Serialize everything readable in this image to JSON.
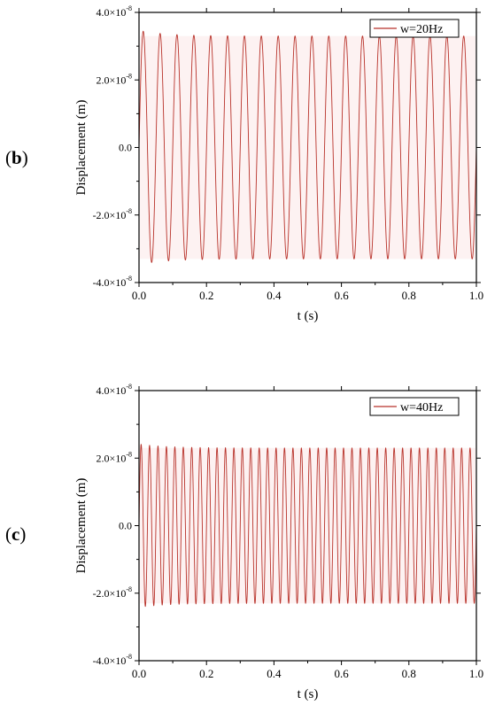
{
  "panels": [
    {
      "label": "(",
      "letter": "b",
      "close": ")"
    },
    {
      "label": "(",
      "letter": "c",
      "close": ")"
    }
  ],
  "colors": {
    "signal": "#b8322a",
    "signal_light": "#d9534f",
    "axis": "#000000",
    "envelope_tint": "#f8dada"
  },
  "chart_data": [
    {
      "type": "line",
      "xlabel": "t (s)",
      "ylabel": "Displacement (m)",
      "xlim": [
        0.0,
        1.0
      ],
      "ylim": [
        -4e-08,
        4e-08
      ],
      "x_ticks": [
        0.0,
        0.2,
        0.4,
        0.6,
        0.8,
        1.0
      ],
      "x_tick_labels": [
        "0.0",
        "0.2",
        "0.4",
        "0.6",
        "0.8",
        "1.0"
      ],
      "y_ticks": [
        4e-08,
        2e-08,
        0.0,
        -2e-08,
        -4e-08
      ],
      "y_tick_labels": [
        {
          "base": "4.0×10",
          "exp": "-8"
        },
        {
          "base": "2.0×10",
          "exp": "-8"
        },
        {
          "base": "0.0",
          "exp": ""
        },
        {
          "base": "-2.0×10",
          "exp": "-8"
        },
        {
          "base": "-4.0×10",
          "exp": "-8"
        }
      ],
      "grid": false,
      "legend_position": "top-right",
      "series": [
        {
          "name": "w=20Hz",
          "frequency_hz": 20,
          "amplitude": 3.3e-08,
          "first_peak": 3.45e-08,
          "first_trough": -3.35e-08
        }
      ]
    },
    {
      "type": "line",
      "xlabel": "t (s)",
      "ylabel": "Displacement (m)",
      "xlim": [
        0.0,
        1.0
      ],
      "ylim": [
        -4e-08,
        4e-08
      ],
      "x_ticks": [
        0.0,
        0.2,
        0.4,
        0.6,
        0.8,
        1.0
      ],
      "x_tick_labels": [
        "0.0",
        "0.2",
        "0.4",
        "0.6",
        "0.8",
        "1.0"
      ],
      "y_ticks": [
        4e-08,
        2e-08,
        0.0,
        -2e-08,
        -4e-08
      ],
      "y_tick_labels": [
        {
          "base": "4.0×10",
          "exp": "-8"
        },
        {
          "base": "2.0×10",
          "exp": "-8"
        },
        {
          "base": "0.0",
          "exp": ""
        },
        {
          "base": "-2.0×10",
          "exp": "-8"
        },
        {
          "base": "-4.0×10",
          "exp": "-8"
        }
      ],
      "grid": false,
      "legend_position": "top-right",
      "series": [
        {
          "name": "w=40Hz",
          "frequency_hz": 40,
          "amplitude": 2.3e-08,
          "first_peak": 2.55e-08,
          "first_trough": -2.35e-08
        }
      ]
    }
  ]
}
